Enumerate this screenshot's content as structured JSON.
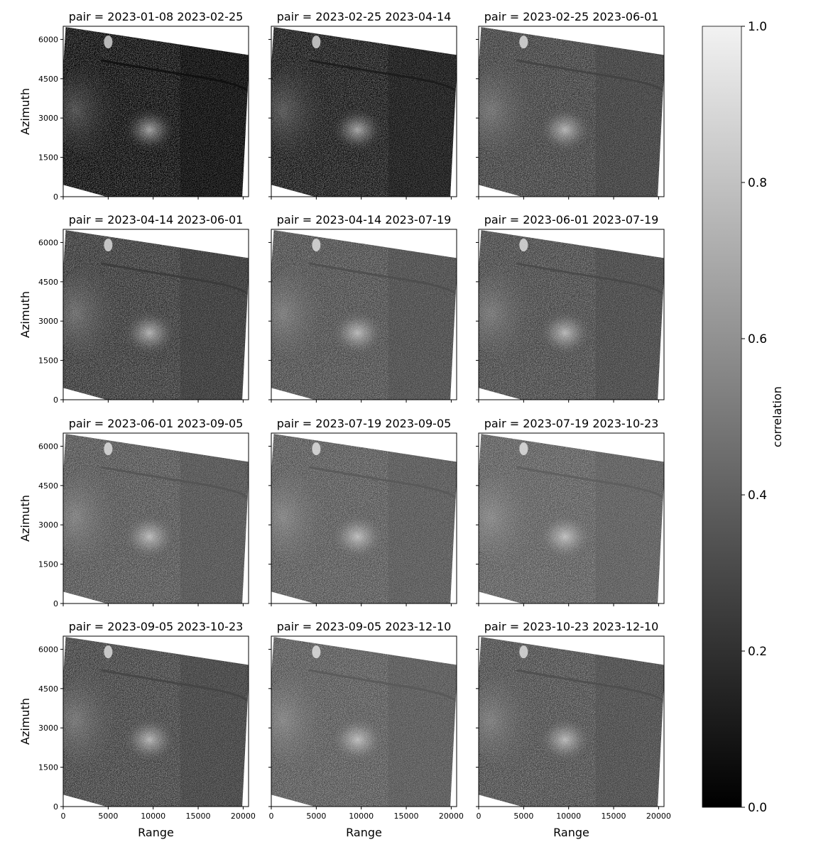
{
  "chart_data": {
    "type": "heatmap",
    "layout": "facet-grid",
    "rows": 4,
    "cols": 3,
    "colormap": "gray",
    "x_axis": {
      "label": "Range",
      "range": [
        0,
        20600
      ],
      "ticks": [
        0,
        5000,
        10000,
        15000,
        20000
      ]
    },
    "y_axis": {
      "label": "Azimuth",
      "range": [
        0,
        6500
      ],
      "ticks": [
        0,
        1500,
        3000,
        4500,
        6000
      ]
    },
    "colorbar": {
      "label": "correlation",
      "range": [
        0.0,
        1.0
      ],
      "ticks": [
        "0.0",
        "0.2",
        "0.4",
        "0.6",
        "0.8",
        "1.0"
      ]
    },
    "panels": [
      {
        "title": "pair = 2023-01-08 2023-02-25",
        "brightness": 0.95
      },
      {
        "title": "pair = 2023-02-25 2023-04-14",
        "brightness": 0.9
      },
      {
        "title": "pair = 2023-02-25 2023-06-01",
        "brightness": 0.75
      },
      {
        "title": "pair = 2023-04-14 2023-06-01",
        "brightness": 0.78
      },
      {
        "title": "pair = 2023-04-14 2023-07-19",
        "brightness": 0.7
      },
      {
        "title": "pair = 2023-06-01 2023-07-19",
        "brightness": 0.72
      },
      {
        "title": "pair = 2023-06-01 2023-09-05",
        "brightness": 0.68
      },
      {
        "title": "pair = 2023-07-19 2023-09-05",
        "brightness": 0.66
      },
      {
        "title": "pair = 2023-07-19 2023-10-23",
        "brightness": 0.64
      },
      {
        "title": "pair = 2023-09-05 2023-10-23",
        "brightness": 0.74
      },
      {
        "title": "pair = 2023-09-05 2023-12-10",
        "brightness": 0.66
      },
      {
        "title": "pair = 2023-10-23 2023-12-10",
        "brightness": 0.7
      }
    ]
  }
}
